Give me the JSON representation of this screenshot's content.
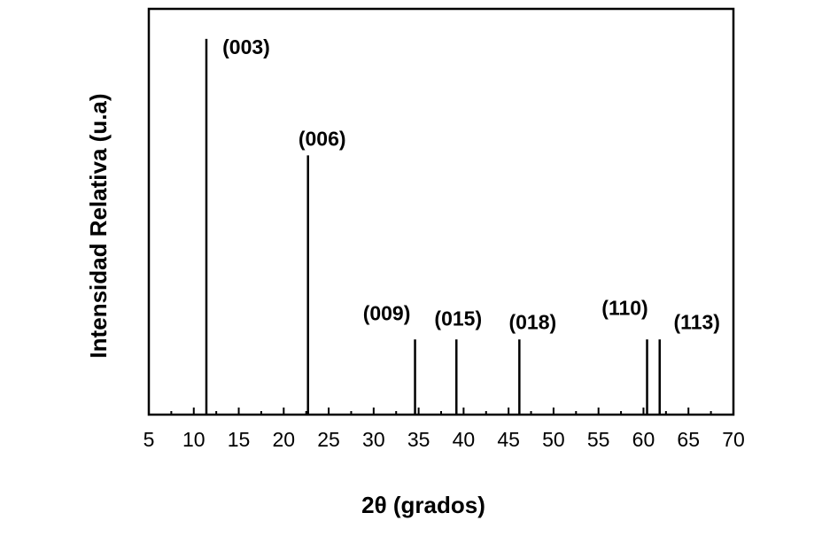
{
  "chart_data": {
    "type": "stick",
    "x_label": "2θ (grados)",
    "y_label": "Intensidad Relativa (u.a)",
    "x": [
      11.4,
      22.7,
      34.6,
      39.2,
      46.2,
      60.4,
      61.8
    ],
    "values": [
      100,
      69,
      20,
      20,
      20,
      20,
      20
    ],
    "labels": [
      "(003)",
      "(006)",
      "(009)",
      "(015)",
      "(018)",
      "(110)",
      "(113)"
    ],
    "color": "#000000",
    "xlim": [
      5,
      70
    ],
    "xticks": [
      5,
      10,
      15,
      20,
      25,
      30,
      35,
      40,
      45,
      50,
      55,
      60,
      65,
      70
    ],
    "xminorticks": [
      7.5,
      12.5,
      17.5,
      22.5,
      27.5,
      32.5,
      37.5,
      42.5,
      47.5,
      52.5,
      57.5,
      62.5,
      67.5
    ],
    "ylim": [
      0,
      108
    ]
  }
}
